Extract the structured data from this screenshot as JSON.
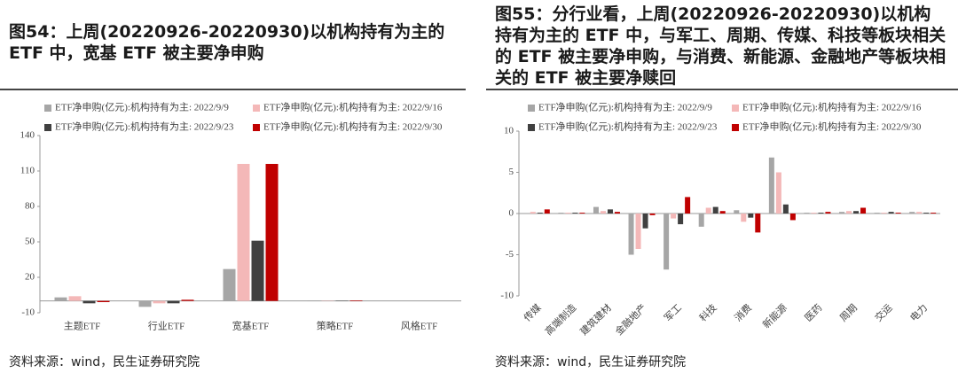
{
  "chart_data": [
    {
      "type": "bar",
      "title": "图54：上周(20220926-20220930)以机构持有为主的 ETF 中，宽基 ETF 被主要净申购",
      "source": "资料来源：wind，民生证券研究院",
      "categories": [
        "主题ETF",
        "行业ETF",
        "宽基ETF",
        "策略ETF",
        "风格ETF"
      ],
      "series": [
        {
          "name": "ETF净申购(亿元):机构持有为主: 2022/9/9",
          "color": "#a6a6a6",
          "values": [
            3,
            -5,
            27,
            0.5,
            0
          ]
        },
        {
          "name": "ETF净申购(亿元):机构持有为主: 2022/9/16",
          "color": "#f4b8b8",
          "values": [
            4,
            -2,
            116,
            0.3,
            0
          ]
        },
        {
          "name": "ETF净申购(亿元):机构持有为主: 2022/9/23",
          "color": "#404040",
          "values": [
            -2,
            -2,
            51,
            0.3,
            0
          ]
        },
        {
          "name": "ETF净申购(亿元):机构持有为主: 2022/9/30",
          "color": "#c00000",
          "values": [
            -1,
            1,
            116,
            0.5,
            0
          ]
        }
      ],
      "ylim": [
        -10,
        140
      ],
      "yticks": [
        -10,
        20,
        50,
        80,
        110,
        140
      ]
    },
    {
      "type": "bar",
      "title": "图55：分行业看，上周(20220926-20220930)以机构持有为主的 ETF 中，与军工、周期、传媒、科技等板块相关的 ETF 被主要净申购，与消费、新能源、金融地产等板块相关的 ETF 被主要净赎回",
      "source": "资料来源：wind，民生证券研究院",
      "categories": [
        "传媒",
        "高端制造",
        "建筑建材",
        "金融地产",
        "军工",
        "科技",
        "消费",
        "新能源",
        "医药",
        "周期",
        "交运",
        "电力"
      ],
      "series": [
        {
          "name": "ETF净申购(亿元):机构持有为主: 2022/9/9",
          "color": "#a6a6a6",
          "values": [
            0,
            0.1,
            0.8,
            -5,
            -6.8,
            -1.6,
            0.4,
            6.8,
            0.1,
            0.2,
            0.1,
            0.2
          ]
        },
        {
          "name": "ETF净申购(亿元):机构持有为主: 2022/9/16",
          "color": "#f4b8b8",
          "values": [
            0.2,
            0.1,
            0.3,
            -4.3,
            -0.6,
            0.7,
            -1,
            5,
            0.1,
            0.3,
            0.1,
            0.2
          ]
        },
        {
          "name": "ETF净申购(亿元):机构持有为主: 2022/9/23",
          "color": "#404040",
          "values": [
            0.1,
            0.1,
            0.5,
            -1.8,
            -1.3,
            0.8,
            -0.5,
            1.1,
            0.1,
            0.3,
            0.2,
            0.1
          ]
        },
        {
          "name": "ETF净申购(亿元):机构持有为主: 2022/9/30",
          "color": "#c00000",
          "values": [
            0.5,
            0.1,
            0.2,
            -0.2,
            2,
            0.3,
            -2.3,
            -0.8,
            0.2,
            0.7,
            0.1,
            0.1
          ]
        }
      ],
      "ylim": [
        -10,
        10
      ],
      "yticks": [
        -10,
        -5,
        0,
        5,
        10
      ]
    }
  ]
}
